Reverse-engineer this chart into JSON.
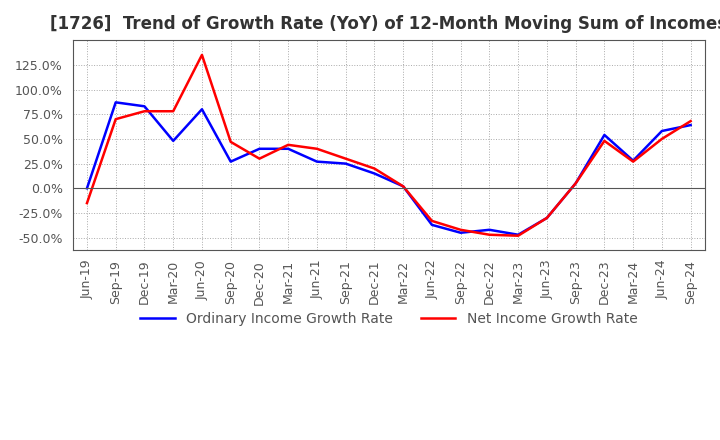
{
  "title": "[1726]  Trend of Growth Rate (YoY) of 12-Month Moving Sum of Incomes",
  "xlabels": [
    "Jun-19",
    "Sep-19",
    "Dec-19",
    "Mar-20",
    "Jun-20",
    "Sep-20",
    "Dec-20",
    "Mar-21",
    "Jun-21",
    "Sep-21",
    "Dec-21",
    "Mar-22",
    "Jun-22",
    "Sep-22",
    "Dec-22",
    "Mar-23",
    "Jun-23",
    "Sep-23",
    "Dec-23",
    "Mar-24",
    "Jun-24",
    "Sep-24"
  ],
  "ordinary_income": [
    0.0,
    87.0,
    83.0,
    48.0,
    80.0,
    27.0,
    40.0,
    40.0,
    27.0,
    25.0,
    15.0,
    2.0,
    -37.0,
    -45.0,
    -42.0,
    -47.0,
    -30.0,
    5.0,
    54.0,
    28.0,
    58.0,
    64.0
  ],
  "net_income": [
    -15.0,
    70.0,
    78.0,
    78.0,
    135.0,
    47.0,
    30.0,
    44.0,
    40.0,
    30.0,
    20.0,
    2.0,
    -33.0,
    -42.0,
    -47.0,
    -48.0,
    -30.0,
    5.0,
    48.0,
    27.0,
    50.0,
    68.0
  ],
  "ordinary_color": "#0000ff",
  "net_color": "#ff0000",
  "ylim": [
    -62.5,
    150.0
  ],
  "yticks": [
    -50.0,
    -25.0,
    0.0,
    25.0,
    50.0,
    75.0,
    100.0,
    125.0
  ],
  "legend_ordinary": "Ordinary Income Growth Rate",
  "legend_net": "Net Income Growth Rate",
  "background_color": "#ffffff",
  "grid_color": "#aaaaaa",
  "title_fontsize": 12,
  "label_fontsize": 9,
  "line_width": 1.8
}
